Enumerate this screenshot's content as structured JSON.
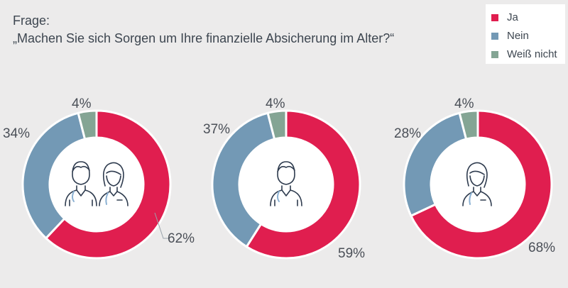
{
  "header": {
    "label": "Frage:",
    "question": "„Machen Sie sich Sorgen um Ihre finanzielle Absicherung im Alter?“"
  },
  "legend": [
    {
      "label": "Ja",
      "color": "#e01e4f"
    },
    {
      "label": "Nein",
      "color": "#7399b5"
    },
    {
      "label": "Weiß nicht",
      "color": "#84a594"
    }
  ],
  "chart_data": [
    {
      "type": "pie",
      "group_icon": "couple-icon",
      "slices": [
        {
          "category": "Ja",
          "value": 62,
          "label": "62%"
        },
        {
          "category": "Nein",
          "value": 34,
          "label": "34%"
        },
        {
          "category": "Weiß nicht",
          "value": 4,
          "label": "4%"
        }
      ]
    },
    {
      "type": "pie",
      "group_icon": "man-icon",
      "slices": [
        {
          "category": "Ja",
          "value": 59,
          "label": "59%"
        },
        {
          "category": "Nein",
          "value": 37,
          "label": "37%"
        },
        {
          "category": "Weiß nicht",
          "value": 4,
          "label": "4%"
        }
      ]
    },
    {
      "type": "pie",
      "group_icon": "woman-icon",
      "slices": [
        {
          "category": "Ja",
          "value": 68,
          "label": "68%"
        },
        {
          "category": "Nein",
          "value": 28,
          "label": "28%"
        },
        {
          "category": "Weiß nicht",
          "value": 4,
          "label": "4%"
        }
      ]
    }
  ]
}
